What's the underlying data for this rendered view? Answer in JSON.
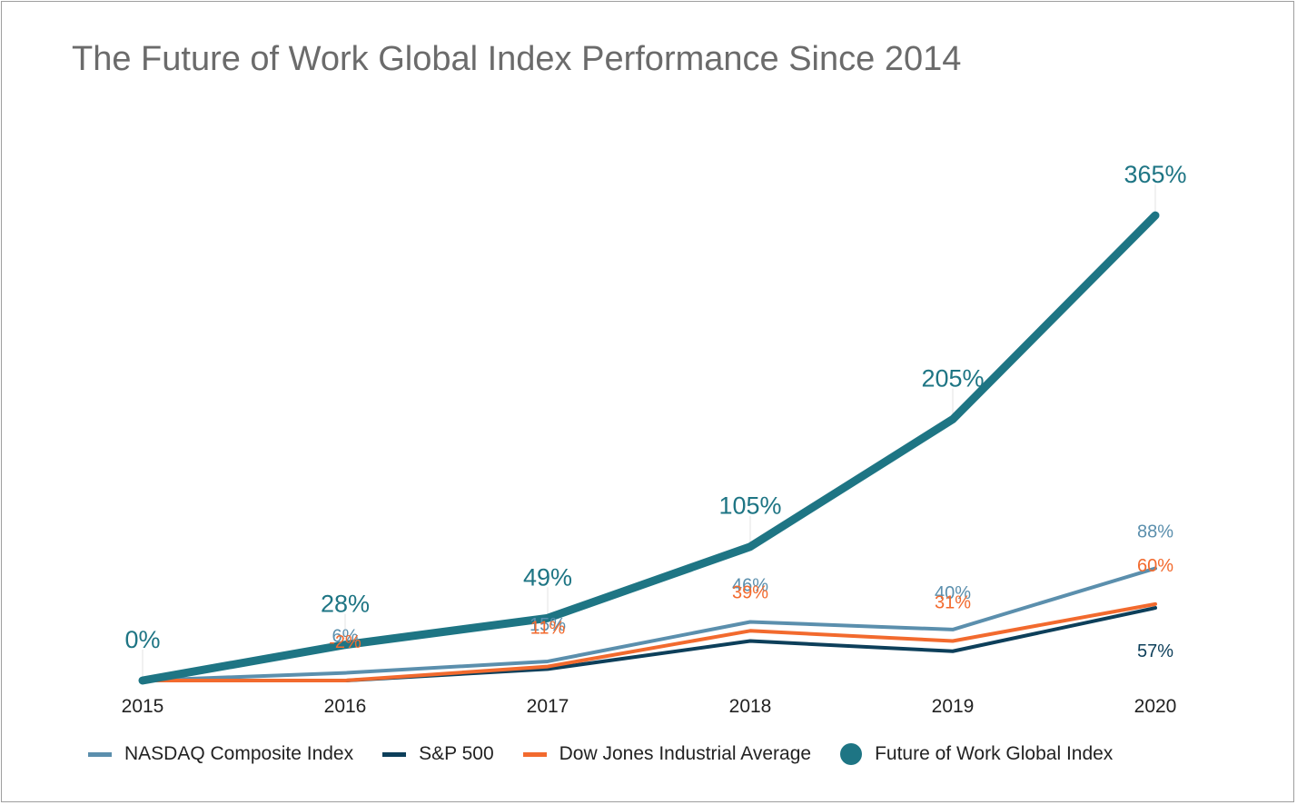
{
  "chart_data": {
    "type": "line",
    "title": "The Future of Work Global Index Performance Since 2014",
    "categories": [
      "2015",
      "2016",
      "2017",
      "2018",
      "2019",
      "2020"
    ],
    "ylim": [
      0,
      400
    ],
    "grid": false,
    "legend_position": "bottom",
    "series": [
      {
        "name": "NASDAQ Composite Index",
        "color": "#5b8fad",
        "values": [
          0,
          6,
          15,
          46,
          40,
          88
        ],
        "labels": [
          "",
          "6%",
          "15%",
          "46%",
          "40%",
          "88%"
        ]
      },
      {
        "name": "S&P 500",
        "color": "#0d3f5a",
        "values": [
          0,
          -2,
          9,
          31,
          23,
          57
        ],
        "labels": [
          "",
          "",
          "",
          "",
          "",
          "57%"
        ]
      },
      {
        "name": "Dow Jones Industrial Average",
        "color": "#f26a2e",
        "values": [
          0,
          -2,
          11,
          39,
          31,
          60
        ],
        "labels": [
          "",
          "-2%",
          "11%",
          "39%",
          "31%",
          "60%"
        ]
      },
      {
        "name": "Future of Work Global Index",
        "color": "#1e7584",
        "values": [
          0,
          28,
          49,
          105,
          205,
          365
        ],
        "labels": [
          "0%",
          "28%",
          "49%",
          "105%",
          "205%",
          "365%"
        ]
      }
    ]
  }
}
